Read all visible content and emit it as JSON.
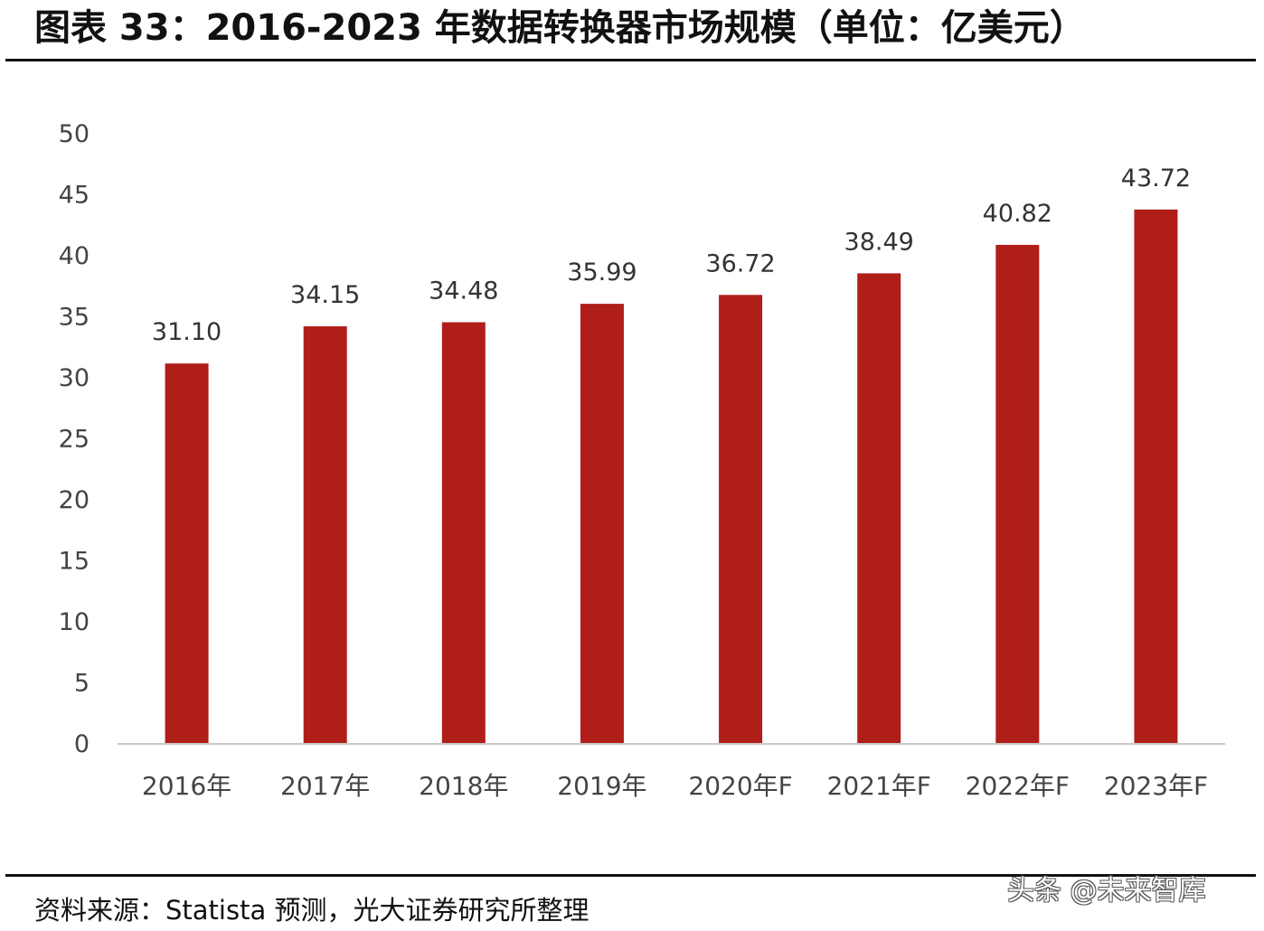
{
  "header": {
    "title": "图表 33：2016-2023 年数据转换器市场规模（单位：亿美元）"
  },
  "footer": {
    "source": "资料来源：Statista 预测，光大证券研究所整理",
    "watermark": "头条 @未来智库"
  },
  "chart_data": {
    "type": "bar",
    "title": "",
    "xlabel": "",
    "ylabel": "",
    "ylim": [
      0,
      50
    ],
    "yticks": [
      0,
      5,
      10,
      15,
      20,
      25,
      30,
      35,
      40,
      45,
      50
    ],
    "categories": [
      "2016年",
      "2017年",
      "2018年",
      "2019年",
      "2020年F",
      "2021年F",
      "2022年F",
      "2023年F"
    ],
    "values": [
      31.1,
      34.15,
      34.48,
      35.99,
      36.72,
      38.49,
      40.82,
      43.72
    ],
    "value_labels": [
      "31.10",
      "34.15",
      "34.48",
      "35.99",
      "36.72",
      "38.49",
      "40.82",
      "43.72"
    ],
    "bar_color": "#b01e1a",
    "grid": false,
    "legend": "none"
  }
}
